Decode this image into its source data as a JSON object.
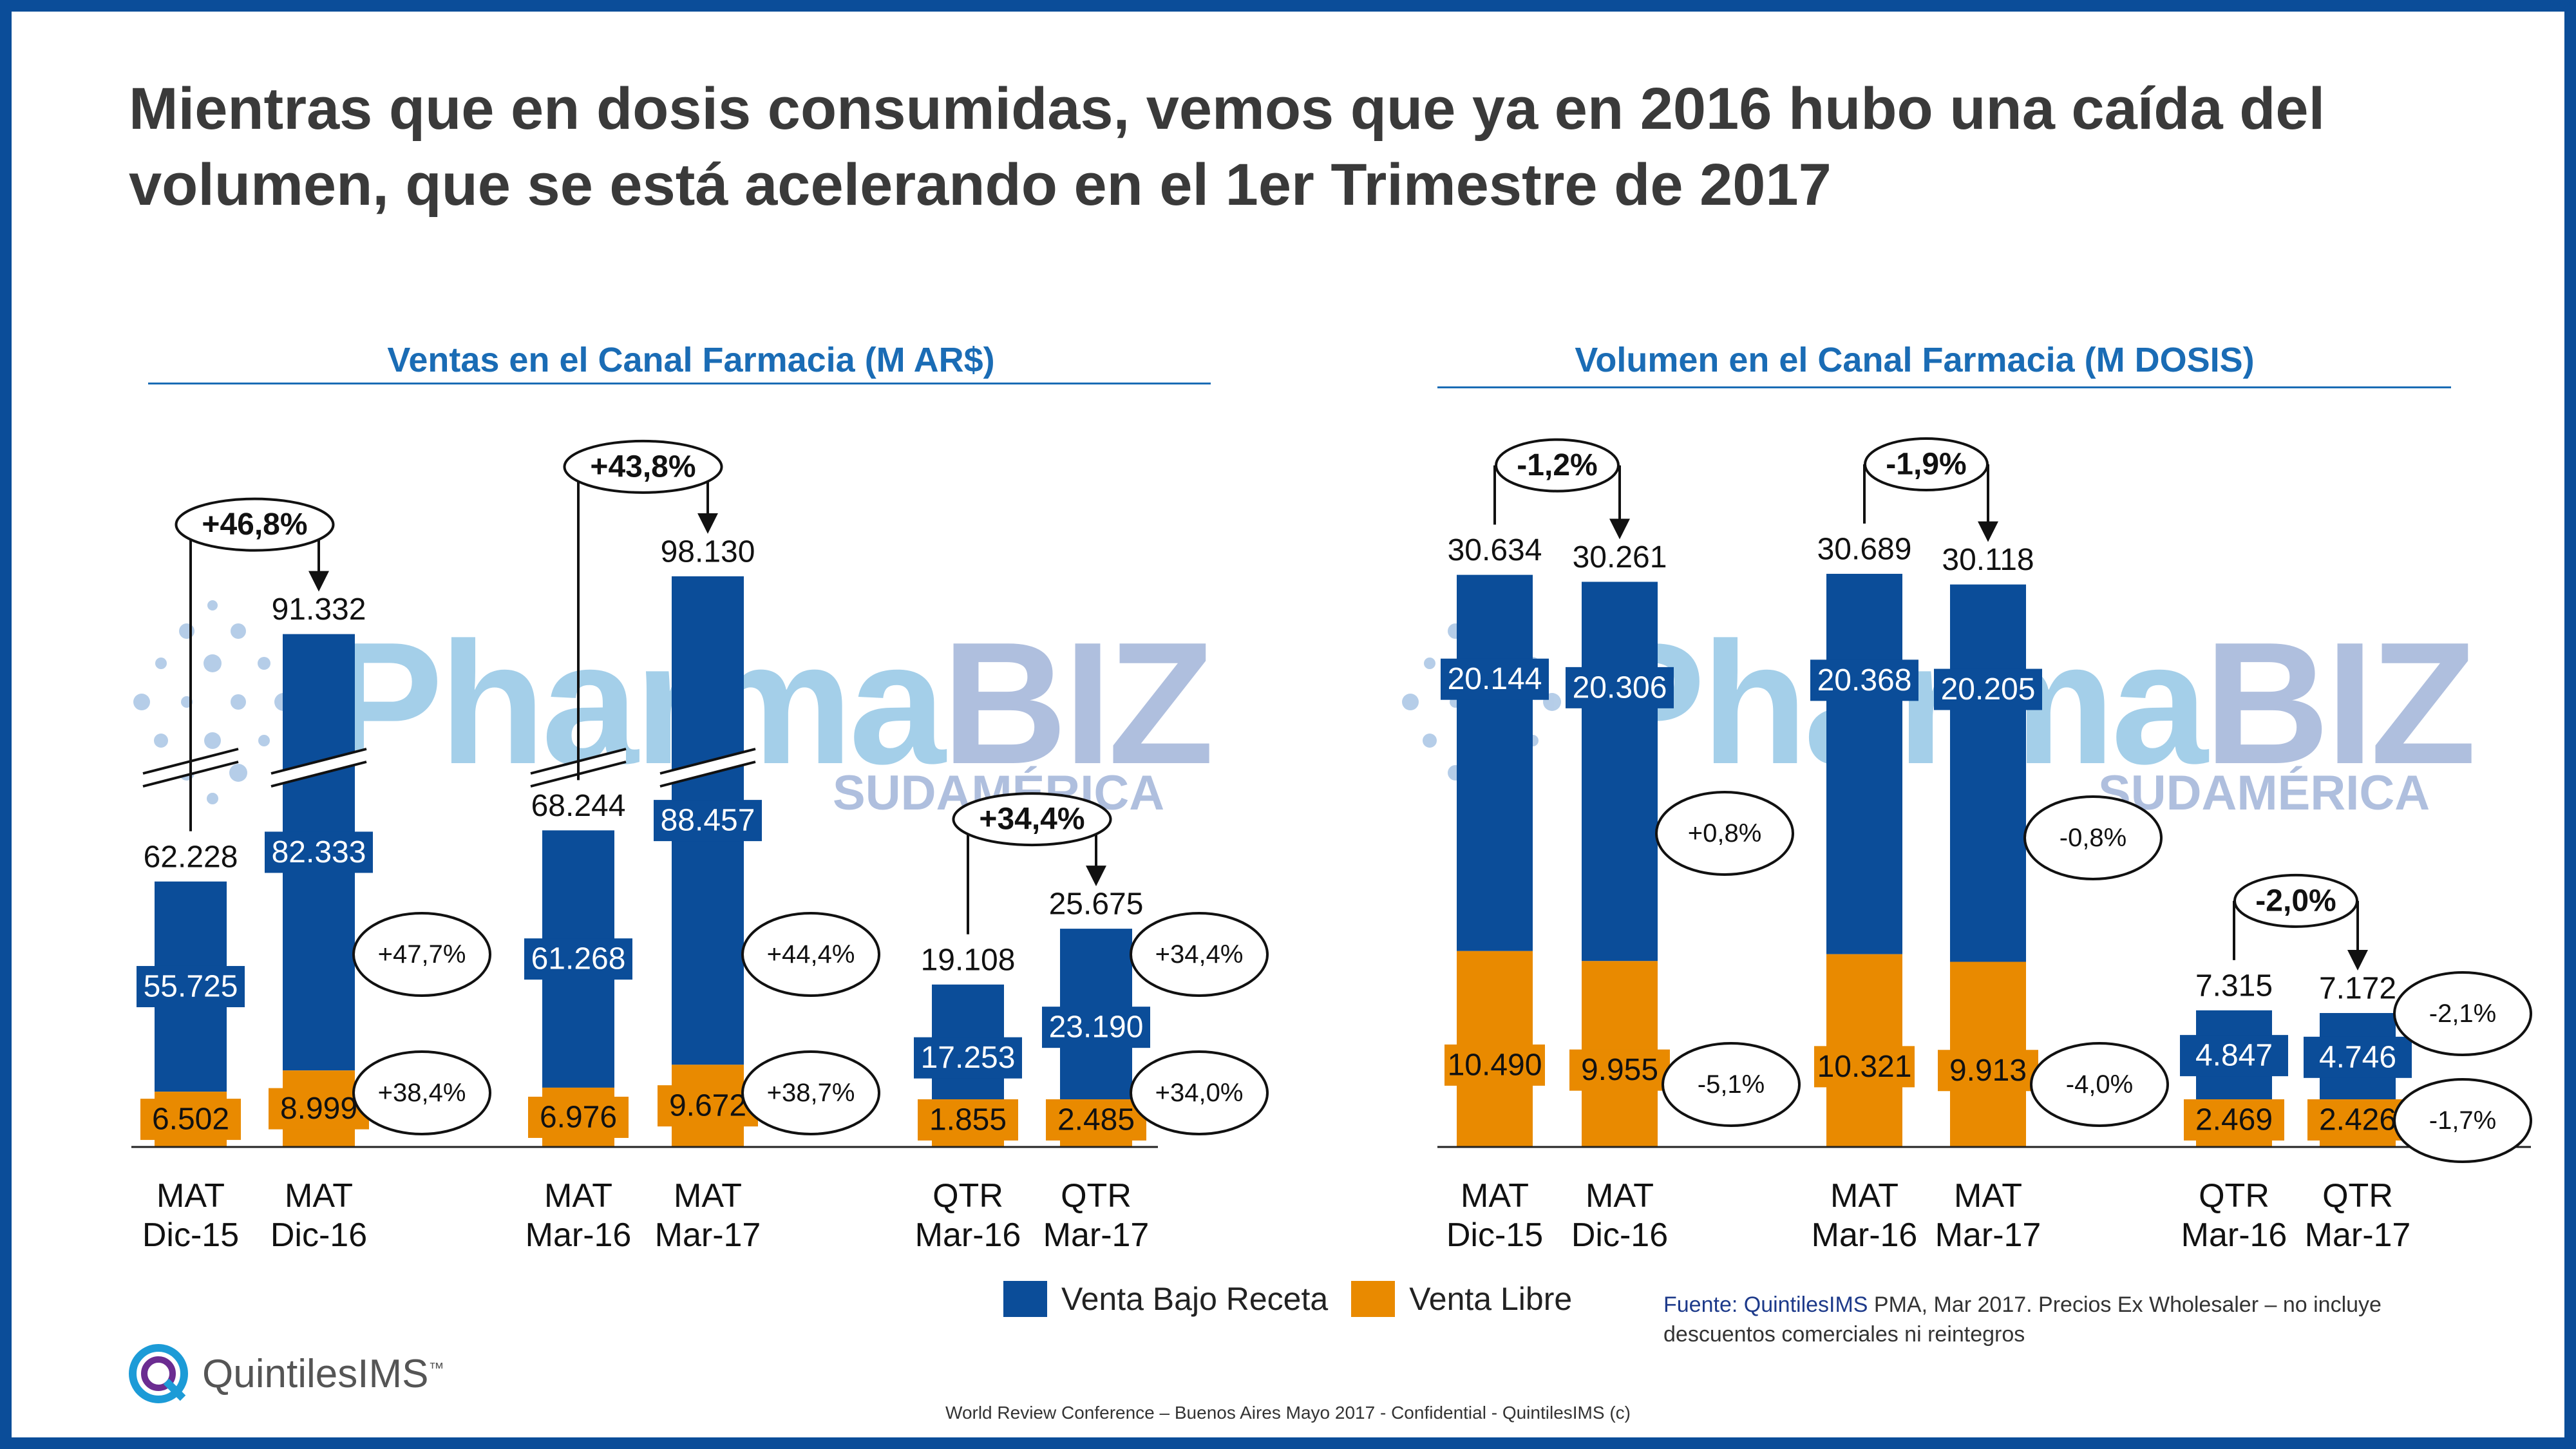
{
  "title": "Mientras que en dosis consumidas, vemos que ya en 2016 hubo una caída del volumen, que se está acelerando en el 1er Trimestre de 2017",
  "watermark": {
    "brand": "PharmaBIZ",
    "sub": "SUDAMÉRICA"
  },
  "legend": [
    {
      "label": "Venta Bajo Receta",
      "color": "#0B4D99"
    },
    {
      "label": "Venta Libre",
      "color": "#E98A00"
    }
  ],
  "source": {
    "prefix": "Fuente: QuintilesIMS",
    "text": " PMA, Mar 2017.  Precios Ex Wholesaler – no incluye descuentos comerciales ni reintegros"
  },
  "footer": "World Review Conference – Buenos Aires Mayo 2017 - Confidential - QuintilesIMS  (c)",
  "logo": {
    "text": "QuintilesIMS",
    "tm": "™"
  },
  "colors": {
    "receta": "#0B4D99",
    "libre": "#E98A00",
    "title_blue": "#1a6cb5"
  },
  "chart_data": [
    {
      "type": "bar",
      "stacked": true,
      "title": "Ventas en el Canal Farmacia (M AR$)",
      "axis_break": "MAT bars shown with broken axis",
      "categories": [
        [
          "MAT",
          "Dic-15"
        ],
        [
          "MAT",
          "Dic-16"
        ],
        [
          "MAT",
          "Mar-16"
        ],
        [
          "MAT",
          "Mar-17"
        ],
        [
          "QTR",
          "Mar-16"
        ],
        [
          "QTR",
          "Mar-17"
        ]
      ],
      "totals": [
        "62.228",
        "91.332",
        "68.244",
        "98.130",
        "19.108",
        "25.675"
      ],
      "series": [
        {
          "name": "Venta Bajo Receta",
          "values": [
            55.725,
            82.333,
            61.268,
            88.457,
            17.253,
            23.19
          ],
          "labels": [
            "55.725",
            "82.333",
            "61.268",
            "88.457",
            "17.253",
            "23.190"
          ]
        },
        {
          "name": "Venta Libre",
          "values": [
            6.502,
            8.999,
            6.976,
            9.672,
            1.855,
            2.485
          ],
          "labels": [
            "6.502",
            "8.999",
            "6.976",
            "9.672",
            "1.855",
            "2.485"
          ]
        }
      ],
      "total_values": [
        62.228,
        91.332,
        68.244,
        98.13,
        19.108,
        25.675
      ],
      "growth_total": [
        {
          "from": 0,
          "to": 1,
          "label": "+46,8%"
        },
        {
          "from": 2,
          "to": 3,
          "label": "+43,8%"
        },
        {
          "from": 4,
          "to": 5,
          "label": "+34,4%"
        }
      ],
      "growth_segment": [
        {
          "bar": 1,
          "series": 0,
          "label": "+47,7%"
        },
        {
          "bar": 1,
          "series": 1,
          "label": "+38,4%"
        },
        {
          "bar": 3,
          "series": 0,
          "label": "+44,4%"
        },
        {
          "bar": 3,
          "series": 1,
          "label": "+38,7%"
        },
        {
          "bar": 5,
          "series": 0,
          "label": "+34,4%"
        },
        {
          "bar": 5,
          "series": 1,
          "label": "+34,0%"
        }
      ]
    },
    {
      "type": "bar",
      "stacked": true,
      "title": "Volumen en el Canal Farmacia (M DOSIS)",
      "categories": [
        [
          "MAT",
          "Dic-15"
        ],
        [
          "MAT",
          "Dic-16"
        ],
        [
          "MAT",
          "Mar-16"
        ],
        [
          "MAT",
          "Mar-17"
        ],
        [
          "QTR",
          "Mar-16"
        ],
        [
          "QTR",
          "Mar-17"
        ]
      ],
      "totals": [
        "30.634",
        "30.261",
        "30.689",
        "30.118",
        "7.315",
        "7.172"
      ],
      "series": [
        {
          "name": "Venta Bajo Receta",
          "values": [
            20.144,
            20.306,
            20.368,
            20.205,
            4.847,
            4.746
          ],
          "labels": [
            "20.144",
            "20.306",
            "20.368",
            "20.205",
            "4.847",
            "4.746"
          ]
        },
        {
          "name": "Venta Libre",
          "values": [
            10.49,
            9.955,
            10.321,
            9.913,
            2.469,
            2.426
          ],
          "labels": [
            "10.490",
            "9.955",
            "10.321",
            "9.913",
            "2.469",
            "2.426"
          ]
        }
      ],
      "total_values": [
        30.634,
        30.261,
        30.689,
        30.118,
        7.315,
        7.172
      ],
      "growth_total": [
        {
          "from": 0,
          "to": 1,
          "label": "-1,2%"
        },
        {
          "from": 2,
          "to": 3,
          "label": "-1,9%"
        },
        {
          "from": 4,
          "to": 5,
          "label": "-2,0%"
        }
      ],
      "growth_segment": [
        {
          "bar": 1,
          "series": 0,
          "label": "+0,8%"
        },
        {
          "bar": 1,
          "series": 1,
          "label": "-5,1%"
        },
        {
          "bar": 3,
          "series": 0,
          "label": "-0,8%"
        },
        {
          "bar": 3,
          "series": 1,
          "label": "-4,0%"
        },
        {
          "bar": 5,
          "series": 0,
          "label": "-2,1%"
        },
        {
          "bar": 5,
          "series": 1,
          "label": "-1,7%"
        }
      ]
    }
  ]
}
